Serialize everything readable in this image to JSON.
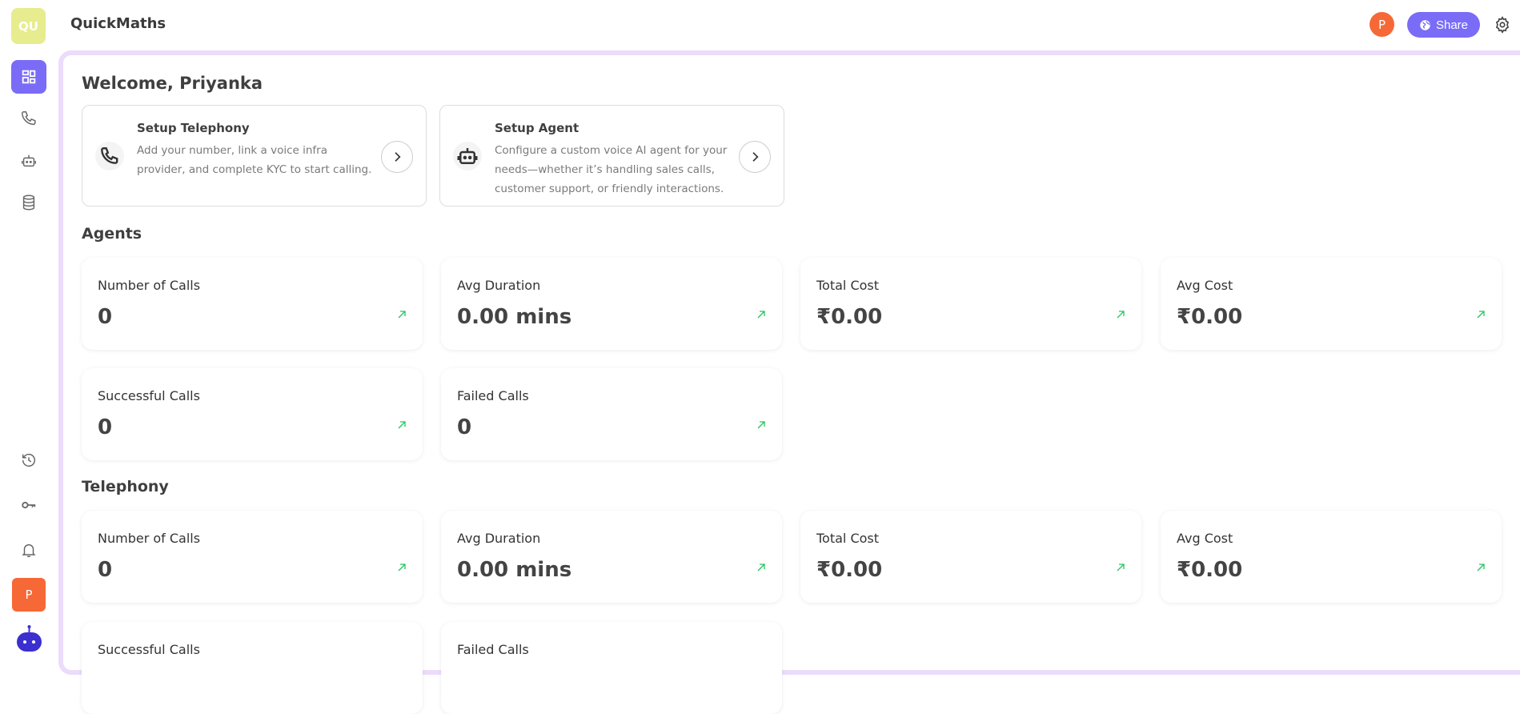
{
  "app": {
    "workspace_initials": "QU",
    "title": "QuickMaths"
  },
  "header": {
    "user_initial": "P",
    "share_label": "Share"
  },
  "sidebar": {
    "items": [
      {
        "name": "dashboard",
        "icon": "dashboard-icon",
        "active": true
      },
      {
        "name": "telephony",
        "icon": "phone-icon"
      },
      {
        "name": "agents",
        "icon": "robot-icon"
      },
      {
        "name": "knowledge-base",
        "icon": "database-icon"
      },
      {
        "name": "history",
        "icon": "history-icon"
      },
      {
        "name": "api-keys",
        "icon": "key-icon"
      },
      {
        "name": "notifications",
        "icon": "bell-icon"
      }
    ],
    "user_initial": "P"
  },
  "welcome": "Welcome, Priyanka",
  "setup_cards": [
    {
      "title": "Setup Telephony",
      "description": "Add your number, link a voice infra provider, and complete KYC to start calling.",
      "icon": "phone-icon"
    },
    {
      "title": "Setup Agent",
      "description": "Configure a custom voice AI agent for your needs—whether it’s handling sales calls, customer support, or friendly interactions.",
      "icon": "robot-icon"
    }
  ],
  "sections": [
    {
      "title": "Agents",
      "stats": [
        {
          "label": "Number of Calls",
          "value": "0"
        },
        {
          "label": "Avg Duration",
          "value": "0.00 mins"
        },
        {
          "label": "Total Cost",
          "value": "₹0.00"
        },
        {
          "label": "Avg Cost",
          "value": "₹0.00"
        },
        {
          "label": "Successful Calls",
          "value": "0"
        },
        {
          "label": "Failed Calls",
          "value": "0"
        }
      ]
    },
    {
      "title": "Telephony",
      "stats": [
        {
          "label": "Number of Calls",
          "value": "0"
        },
        {
          "label": "Avg Duration",
          "value": "0.00 mins"
        },
        {
          "label": "Total Cost",
          "value": "₹0.00"
        },
        {
          "label": "Avg Cost",
          "value": "₹0.00"
        },
        {
          "label": "Successful Calls",
          "value": ""
        },
        {
          "label": "Failed Calls",
          "value": ""
        }
      ]
    }
  ],
  "colors": {
    "accent": "#7a6cf7",
    "avatar": "#f76837",
    "workspace": "#e7ec8f",
    "trend": "#22c55e",
    "panel_border": "#ecdcfb"
  }
}
